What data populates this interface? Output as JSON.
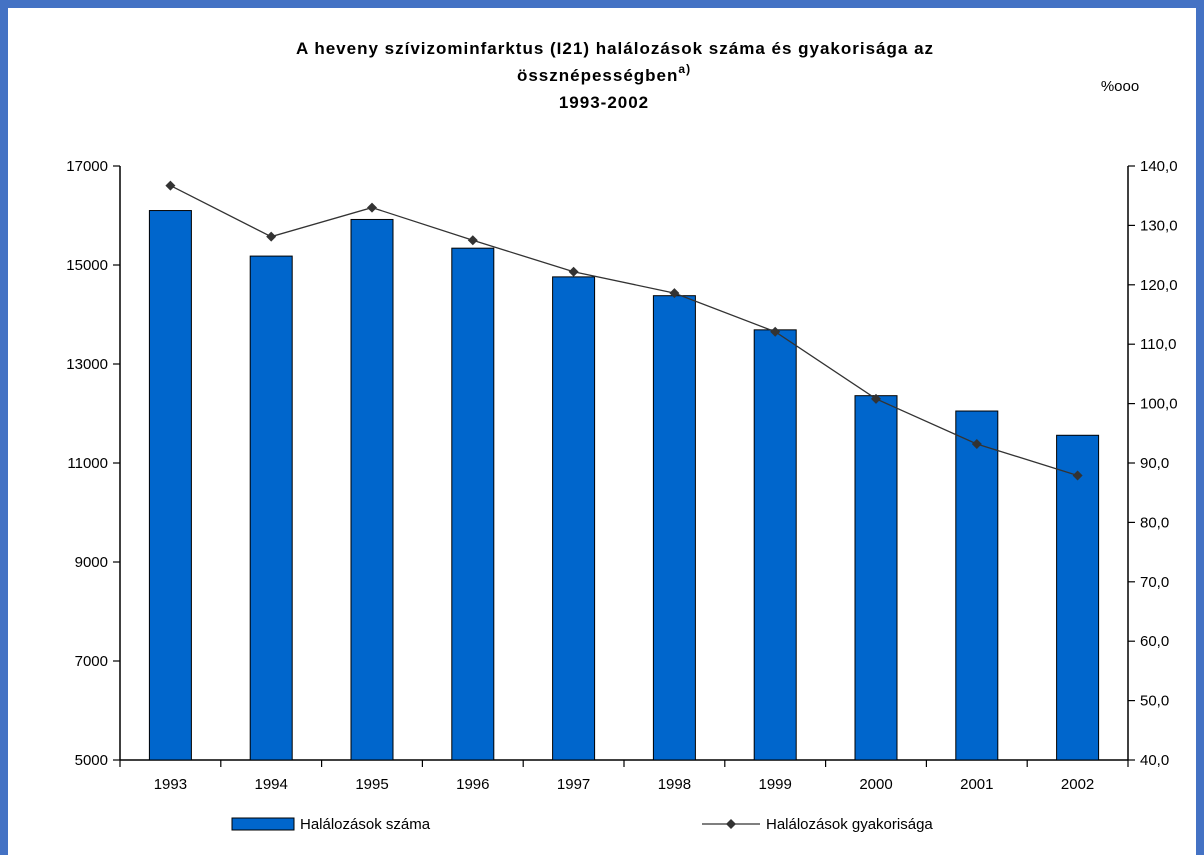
{
  "chart_data": {
    "type": "bar",
    "title_line1": "A heveny szívizominfarktus (I21) halálozások száma és gyakorisága az",
    "title_line2": "össznépességben",
    "title_superscript": "a)",
    "title_line3": "1993-2002",
    "right_unit": "%ooo",
    "categories": [
      "1993",
      "1994",
      "1995",
      "1996",
      "1997",
      "1998",
      "1999",
      "2000",
      "2001",
      "2002"
    ],
    "series": [
      {
        "name": "Halálozások száma",
        "kind": "bar",
        "axis": "left",
        "color": "#0066cc",
        "values": [
          16100,
          15180,
          15920,
          15340,
          14760,
          14380,
          13690,
          12360,
          12050,
          11560
        ]
      },
      {
        "name": "Halálozások gyakorisága",
        "kind": "line",
        "axis": "right",
        "color": "#333333",
        "values": [
          136.7,
          128.1,
          133.0,
          127.5,
          122.2,
          118.6,
          112.1,
          100.8,
          93.2,
          87.9
        ]
      }
    ],
    "y_left": {
      "min": 5000,
      "max": 17000,
      "ticks": [
        "5000",
        "7000",
        "9000",
        "11000",
        "13000",
        "15000",
        "17000"
      ]
    },
    "y_right": {
      "min": 40,
      "max": 140,
      "ticks": [
        "40,0",
        "50,0",
        "60,0",
        "70,0",
        "80,0",
        "90,0",
        "100,0",
        "110,0",
        "120,0",
        "130,0",
        "140,0"
      ]
    },
    "grid": false,
    "legend_position": "bottom"
  }
}
